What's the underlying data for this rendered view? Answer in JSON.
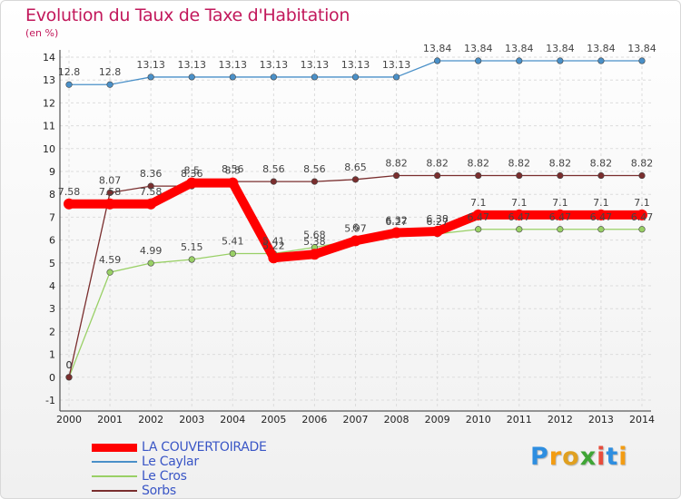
{
  "title": "Evolution du Taux de Taxe d'Habitation",
  "subtitle": "(en %)",
  "logo": {
    "text": "Proxiti",
    "letter_colors": [
      "#2e8ee0",
      "#f39c12",
      "#e0a020",
      "#3fa535",
      "#e74c3c",
      "#2e8ee0",
      "#f39c12"
    ]
  },
  "chart_data": {
    "type": "line",
    "x": [
      "2000",
      "2001",
      "2002",
      "2003",
      "2004",
      "2005",
      "2006",
      "2007",
      "2008",
      "2009",
      "2010",
      "2011",
      "2012",
      "2013",
      "2014"
    ],
    "ylim": [
      -1,
      14
    ],
    "yticks": [
      "-1",
      "0",
      "1",
      "2",
      "3",
      "4",
      "5",
      "6",
      "7",
      "8",
      "9",
      "10",
      "11",
      "12",
      "13",
      "14"
    ],
    "grid": true,
    "legend_position": "bottom-left",
    "series": [
      {
        "name": "LA COUVERTOIRADE",
        "color": "#ff0000",
        "values": [
          7.58,
          7.58,
          7.58,
          8.5,
          8.5,
          5.22,
          5.38,
          5.97,
          6.32,
          6.38,
          7.1,
          7.1,
          7.1,
          7.1,
          7.1
        ],
        "labels": [
          "7.58",
          "7.58",
          "7.58",
          "8.5",
          "8.5",
          "5.22",
          "5.38",
          "5.97",
          "6.32",
          "6.38",
          "7.1",
          "7.1",
          "7.1",
          "7.1",
          "7.1"
        ]
      },
      {
        "name": "Le Caylar",
        "color": "#4a90c8",
        "values": [
          12.8,
          12.8,
          13.13,
          13.13,
          13.13,
          13.13,
          13.13,
          13.13,
          13.13,
          13.84,
          13.84,
          13.84,
          13.84,
          13.84,
          13.84
        ],
        "labels": [
          "12.8",
          "12.8",
          "13.13",
          "13.13",
          "13.13",
          "13.13",
          "13.13",
          "13.13",
          "13.13",
          "13.84",
          "13.84",
          "13.84",
          "13.84",
          "13.84",
          "13.84"
        ]
      },
      {
        "name": "Le Cros",
        "color": "#99d066",
        "values": [
          0,
          4.59,
          4.99,
          5.15,
          5.41,
          5.41,
          5.68,
          6,
          6.27,
          6.27,
          6.47,
          6.47,
          6.47,
          6.47,
          6.47
        ],
        "labels": [
          "0",
          "4.59",
          "4.99",
          "5.15",
          "5.41",
          "5.41",
          "5.68",
          "6",
          "6.27",
          "6.27",
          "6.47",
          "6.47",
          "6.47",
          "6.47",
          "6.47"
        ]
      },
      {
        "name": "Sorbs",
        "color": "#7a2e2e",
        "values": [
          0,
          8.07,
          8.36,
          8.36,
          8.56,
          8.56,
          8.56,
          8.65,
          8.82,
          8.82,
          8.82,
          8.82,
          8.82,
          8.82,
          8.82
        ],
        "labels": [
          "0",
          "8.07",
          "8.36",
          "8.36",
          "8.56",
          "8.56",
          "8.56",
          "8.65",
          "8.82",
          "8.82",
          "8.82",
          "8.82",
          "8.82",
          "8.82",
          "8.82"
        ]
      }
    ]
  }
}
